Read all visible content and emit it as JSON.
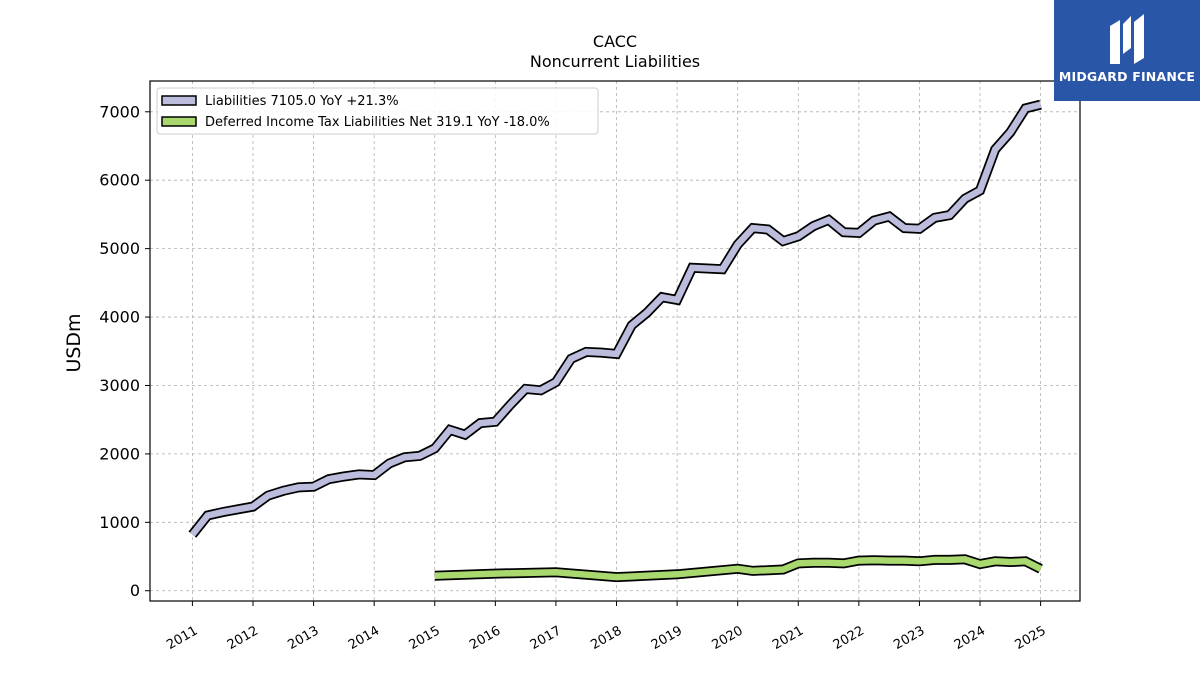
{
  "brand": {
    "name": "MIDGARD FINANCE",
    "color": "#2a56a8"
  },
  "chart_data": {
    "type": "line",
    "title": "CACC",
    "subtitle": "Noncurrent  Liabilities",
    "ylabel": "USDm",
    "xlabel": "",
    "ylim": [
      -150,
      7450
    ],
    "xlim": [
      2010.3,
      2025.65
    ],
    "yticks": [
      0,
      1000,
      2000,
      3000,
      4000,
      5000,
      6000,
      7000
    ],
    "xticks": [
      "2011",
      "2012",
      "2013",
      "2014",
      "2015",
      "2016",
      "2017",
      "2018",
      "2019",
      "2020",
      "2021",
      "2022",
      "2023",
      "2024",
      "2025"
    ],
    "grid": true,
    "legend_position": "top-left",
    "series": [
      {
        "name": "Liabilities  7105.0 YoY +21.3%",
        "color": "#bcbcdc",
        "x": [
          2011.0,
          2011.25,
          2011.5,
          2011.75,
          2012.0,
          2012.25,
          2012.5,
          2012.75,
          2013.0,
          2013.25,
          2013.5,
          2013.75,
          2014.0,
          2014.25,
          2014.5,
          2014.75,
          2015.0,
          2015.25,
          2015.5,
          2015.75,
          2016.0,
          2016.25,
          2016.5,
          2016.75,
          2017.0,
          2017.25,
          2017.5,
          2017.75,
          2018.0,
          2018.25,
          2018.5,
          2018.75,
          2019.0,
          2019.25,
          2019.5,
          2019.75,
          2020.0,
          2020.25,
          2020.5,
          2020.75,
          2021.0,
          2021.25,
          2021.5,
          2021.75,
          2022.0,
          2022.25,
          2022.5,
          2022.75,
          2023.0,
          2023.25,
          2023.5,
          2023.75,
          2024.0,
          2024.25,
          2024.5,
          2024.75,
          2025.0
        ],
        "values": [
          820,
          1100,
          1150,
          1190,
          1230,
          1390,
          1460,
          1510,
          1520,
          1630,
          1670,
          1700,
          1690,
          1860,
          1950,
          1970,
          2080,
          2350,
          2280,
          2450,
          2470,
          2720,
          2950,
          2930,
          3050,
          3390,
          3490,
          3480,
          3460,
          3880,
          4060,
          4290,
          4250,
          4720,
          4710,
          4700,
          5060,
          5300,
          5280,
          5110,
          5180,
          5330,
          5420,
          5240,
          5230,
          5410,
          5470,
          5300,
          5290,
          5450,
          5490,
          5730,
          5850,
          6450,
          6700,
          7050,
          7105
        ]
      },
      {
        "name": "Deferred Income Tax Liabilities Net  319.1 YoY -18.0%",
        "color": "#a8d86e",
        "x": [
          2015.0,
          2016.0,
          2017.0,
          2018.0,
          2019.0,
          2020.0,
          2020.25,
          2020.5,
          2020.75,
          2021.0,
          2021.25,
          2021.5,
          2021.75,
          2022.0,
          2022.25,
          2022.5,
          2022.75,
          2023.0,
          2023.25,
          2023.5,
          2023.75,
          2024.0,
          2024.25,
          2024.5,
          2024.75,
          2025.0
        ],
        "values": [
          220,
          250,
          270,
          200,
          240,
          320,
          290,
          300,
          310,
          400,
          410,
          410,
          400,
          440,
          445,
          440,
          440,
          430,
          450,
          450,
          460,
          390,
          430,
          420,
          430,
          319
        ]
      }
    ]
  }
}
